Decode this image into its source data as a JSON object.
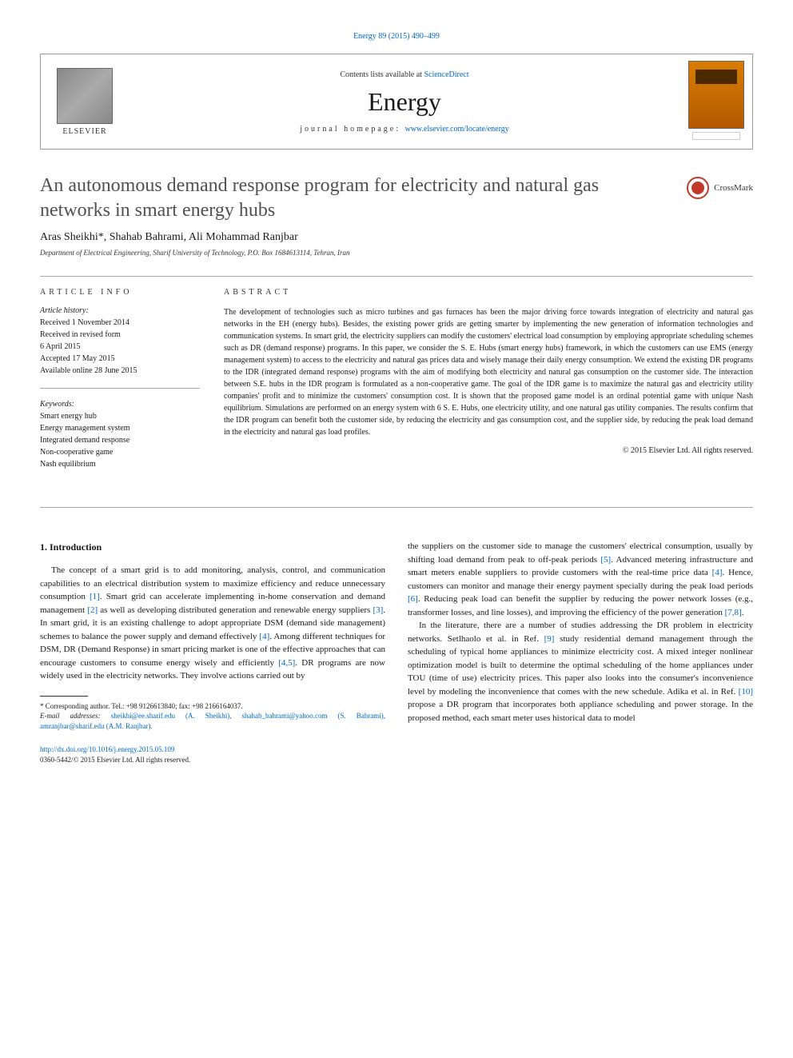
{
  "header": {
    "citation": "Energy 89 (2015) 490–499",
    "contents_prefix": "Contents lists available at ",
    "contents_link": "ScienceDirect",
    "journal": "Energy",
    "homepage_prefix": "journal homepage: ",
    "homepage_url": "www.elsevier.com/locate/energy",
    "elsevier_brand": "ELSEVIER"
  },
  "title": "An autonomous demand response program for electricity and natural gas networks in smart energy hubs",
  "crossmark": "CrossMark",
  "authors": "Aras Sheikhi*, Shahab Bahrami, Ali Mohammad Ranjbar",
  "affiliation": "Department of Electrical Engineering, Sharif University of Technology, P.O. Box 1684613114, Tehran, Iran",
  "article_info": {
    "label": "ARTICLE INFO",
    "history_heading": "Article history:",
    "history": [
      "Received 1 November 2014",
      "Received in revised form",
      "6 April 2015",
      "Accepted 17 May 2015",
      "Available online 28 June 2015"
    ],
    "keywords_heading": "Keywords:",
    "keywords": [
      "Smart energy hub",
      "Energy management system",
      "Integrated demand response",
      "Non-cooperative game",
      "Nash equilibrium"
    ]
  },
  "abstract": {
    "label": "ABSTRACT",
    "text": "The development of technologies such as micro turbines and gas furnaces has been the major driving force towards integration of electricity and natural gas networks in the EH (energy hubs). Besides, the existing power grids are getting smarter by implementing the new generation of information technologies and communication systems. In smart grid, the electricity suppliers can modify the customers' electrical load consumption by employing appropriate scheduling schemes such as DR (demand response) programs. In this paper, we consider the S. E. Hubs (smart energy hubs) framework, in which the customers can use EMS (energy management system) to access to the electricity and natural gas prices data and wisely manage their daily energy consumption. We extend the existing DR programs to the IDR (integrated demand response) programs with the aim of modifying both electricity and natural gas consumption on the customer side. The interaction between S.E. hubs in the IDR program is formulated as a non-cooperative game. The goal of the IDR game is to maximize the natural gas and electricity utility companies' profit and to minimize the customers' consumption cost. It is shown that the proposed game model is an ordinal potential game with unique Nash equilibrium. Simulations are performed on an energy system with 6 S. E. Hubs, one electricity utility, and one natural gas utility companies. The results confirm that the IDR program can benefit both the customer side, by reducing the electricity and gas consumption cost, and the supplier side, by reducing the peak load demand in the electricity and natural gas load profiles.",
    "copyright": "© 2015 Elsevier Ltd. All rights reserved."
  },
  "body": {
    "heading": "1.  Introduction",
    "left": [
      "The concept of a smart grid is to add monitoring, analysis, control, and communication capabilities to an electrical distribution system to maximize efficiency and reduce unnecessary consumption [1]. Smart grid can accelerate implementing in-home conservation and demand management [2] as well as developing distributed generation and renewable energy suppliers [3]. In smart grid, it is an existing challenge to adopt appropriate DSM (demand side management) schemes to balance the power supply and demand effectively [4]. Among different techniques for DSM, DR (Demand Response) in smart pricing market is one of the effective approaches that can encourage customers to consume energy wisely and efficiently [4,5]. DR programs are now widely used in the electricity networks. They involve actions carried out by"
    ],
    "right": [
      "the suppliers on the customer side to manage the customers' electrical consumption, usually by shifting load demand from peak to off-peak periods [5]. Advanced metering infrastructure and smart meters enable suppliers to provide customers with the real-time price data [4]. Hence, customers can monitor and manage their energy payment specially during the peak load periods [6]. Reducing peak load can benefit the supplier by reducing the power network losses (e.g., transformer losses, and line losses), and improving the efficiency of the power generation [7,8].",
      "In the literature, there are a number of studies addressing the DR problem in electricity networks. Setlhaolo et al. in Ref. [9] study residential demand management through the scheduling of typical home appliances to minimize electricity cost. A mixed integer nonlinear optimization model is built to determine the optimal scheduling of the home appliances under TOU (time of use) electricity prices. This paper also looks into the consumer's inconvenience level by modeling the inconvenience that comes with the new schedule. Adika et al. in Ref. [10] propose a DR program that incorporates both appliance scheduling and power storage. In the proposed method, each smart meter uses historical data to model"
    ]
  },
  "footnote": {
    "corr": "* Corresponding author. Tel.: +98 9126613840; fax: +98 2166164037.",
    "emails_label": "E-mail addresses: ",
    "emails": "sheikhi@ee.sharif.edu (A. Sheikhi), shahab_bahrami@yahoo.com (S. Bahrami), amranjbar@sharif.edu (A.M. Ranjbar)."
  },
  "doi": {
    "url": "http://dx.doi.org/10.1016/j.energy.2015.05.109",
    "issn": "0360-5442/© 2015 Elsevier Ltd. All rights reserved."
  },
  "colors": {
    "link": "#0066cc",
    "text": "#1a1a1a",
    "title_gray": "#505050",
    "rule": "#aaaaaa",
    "cover_top": "#d97d00",
    "cover_bottom": "#b35900",
    "crossmark": "#c0392b"
  },
  "refs": {
    "r1": "[1]",
    "r2": "[2]",
    "r3": "[3]",
    "r4": "[4]",
    "r45": "[4,5]",
    "r5": "[5]",
    "r6": "[6]",
    "r78": "[7,8]",
    "r9": "[9]",
    "r10": "[10]"
  }
}
